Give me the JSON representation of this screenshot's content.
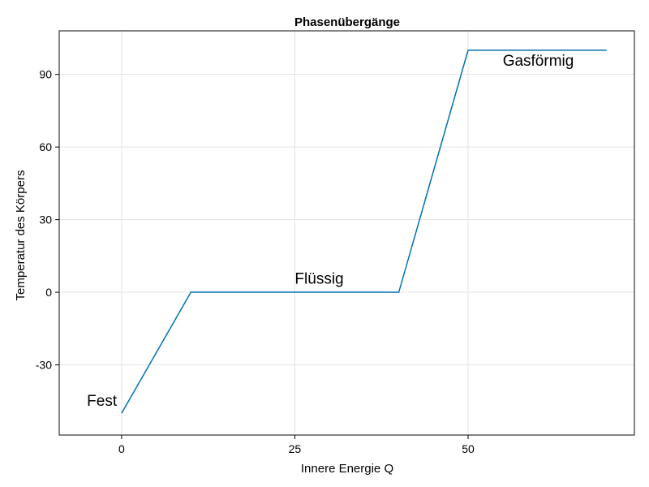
{
  "chart_data": {
    "type": "line",
    "title": "Phasenübergänge",
    "xlabel": "Innere Energie Q",
    "ylabel": "Temperatur des Körpers",
    "xlim": [
      -9,
      74
    ],
    "ylim": [
      -59,
      108
    ],
    "xticks": [
      0,
      25,
      50
    ],
    "yticks": [
      -30,
      0,
      30,
      60,
      90
    ],
    "grid": true,
    "series": [
      {
        "color": "#0072b2",
        "x": [
          0,
          10,
          40,
          50,
          70
        ],
        "y": [
          -50,
          0,
          0,
          100,
          100
        ]
      }
    ],
    "annotations": [
      {
        "text": "Fest",
        "x": -5,
        "y": -47
      },
      {
        "text": "Flüssig",
        "x": 25,
        "y": 3.5
      },
      {
        "text": "Gasförmig",
        "x": 55,
        "y": 93.5
      }
    ]
  }
}
